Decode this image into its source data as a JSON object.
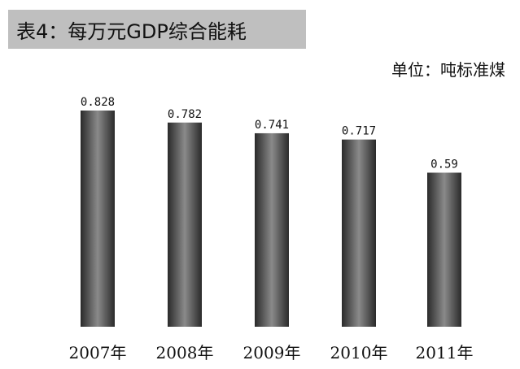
{
  "chart_data": {
    "type": "bar",
    "title": "表4：每万元GDP综合能耗",
    "unit": "单位：吨标准煤",
    "categories": [
      "2007年",
      "2008年",
      "2009年",
      "2010年",
      "2011年"
    ],
    "values": [
      0.828,
      0.782,
      0.741,
      0.717,
      0.59
    ],
    "value_labels": [
      "0.828",
      "0.782",
      "0.741",
      "0.717",
      "0.59"
    ],
    "ylim": [
      0,
      0.828
    ],
    "grid": false,
    "legend": "none"
  }
}
